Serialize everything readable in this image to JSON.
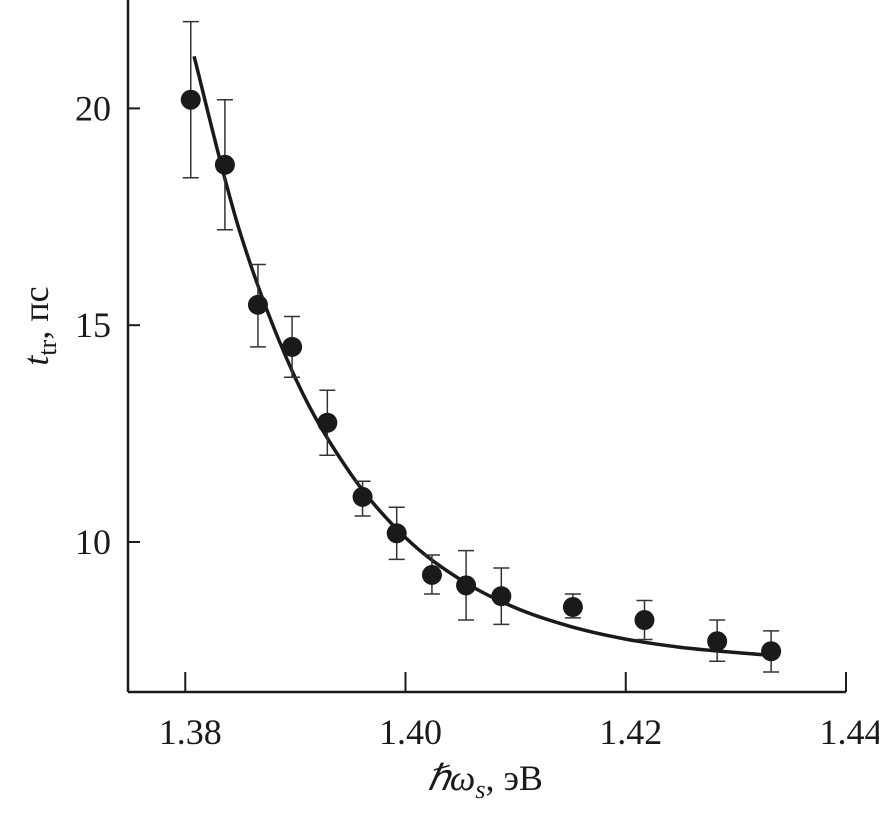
{
  "chart_data": {
    "type": "scatter",
    "xlabel": {
      "symbol": "ℏω",
      "sub": "s",
      "unit": ", эВ"
    },
    "ylabel": {
      "symbol": "t",
      "sub": "tr",
      "unit": ", пс"
    },
    "xlim": [
      1.3748,
      1.44
    ],
    "ylim": [
      6.54,
      22.5
    ],
    "x_ticks": [
      1.38,
      1.4,
      1.42,
      1.44
    ],
    "x_tick_labels": [
      "1.38",
      "1.40",
      "1.42",
      "1.44"
    ],
    "y_ticks": [
      10,
      15,
      20
    ],
    "y_tick_labels": [
      "10",
      "15",
      "20"
    ],
    "grid": false,
    "colors": {
      "points": "#1a1a1a",
      "fit": "#1a1a1a",
      "axes": "#1a1a1a"
    },
    "series": [
      {
        "type": "scatter-errorbar",
        "x": [
          1.3805,
          1.3836,
          1.3866,
          1.3897,
          1.3929,
          1.3961,
          1.3992,
          1.4024,
          1.4055,
          1.4087,
          1.4152,
          1.4217,
          1.4283,
          1.4332
        ],
        "y": [
          20.2,
          18.7,
          15.47,
          14.5,
          12.75,
          11.04,
          10.2,
          9.24,
          9.0,
          8.75,
          8.5,
          8.2,
          7.71,
          7.48
        ],
        "y_low": [
          18.4,
          17.2,
          14.5,
          13.8,
          12.0,
          10.6,
          9.6,
          8.8,
          8.2,
          8.1,
          8.25,
          7.75,
          7.25,
          7.0
        ],
        "y_high": [
          22.0,
          20.2,
          16.4,
          15.2,
          13.5,
          11.4,
          10.8,
          9.7,
          9.8,
          9.4,
          8.8,
          8.65,
          8.2,
          7.95
        ]
      },
      {
        "type": "line",
        "x": [
          1.3808,
          1.385,
          1.39,
          1.395,
          1.4,
          1.405,
          1.41,
          1.415,
          1.42,
          1.425,
          1.43,
          1.4335
        ],
        "y": [
          21.2,
          17.12,
          13.78,
          11.58,
          10.1,
          9.13,
          8.48,
          8.05,
          7.76,
          7.57,
          7.45,
          7.38
        ]
      }
    ]
  }
}
